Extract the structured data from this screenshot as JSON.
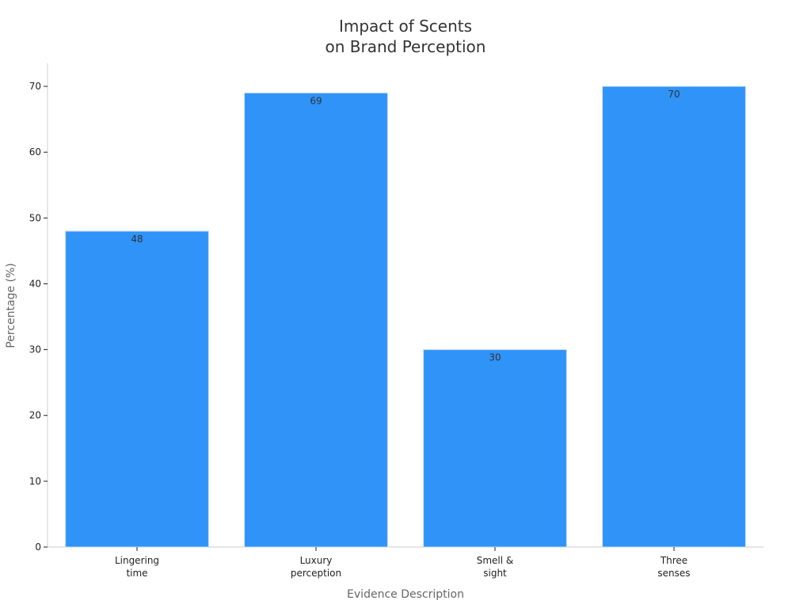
{
  "chart_data": {
    "type": "bar",
    "title": [
      "Impact of Scents",
      "on Brand Perception"
    ],
    "xlabel": "Evidence Description",
    "ylabel": "Percentage (%)",
    "categories": [
      [
        "Lingering",
        "time"
      ],
      [
        "Luxury",
        "perception"
      ],
      [
        "Smell &",
        "sight"
      ],
      [
        "Three",
        "senses"
      ]
    ],
    "values": [
      48,
      69,
      30,
      70
    ],
    "value_labels": [
      "48",
      "69",
      "30",
      "70"
    ],
    "ylim": [
      0,
      73.5
    ],
    "yticks": [
      0,
      10,
      20,
      30,
      40,
      50,
      60,
      70
    ],
    "ytick_labels": [
      "0",
      "10",
      "20",
      "30",
      "40",
      "50",
      "60",
      "70"
    ],
    "grid": false,
    "legend": "none",
    "colors": {
      "bar": "#2f93f8",
      "bar_edge": "#c9dcf2",
      "axis": "#cccccc",
      "text": "#222222"
    }
  }
}
